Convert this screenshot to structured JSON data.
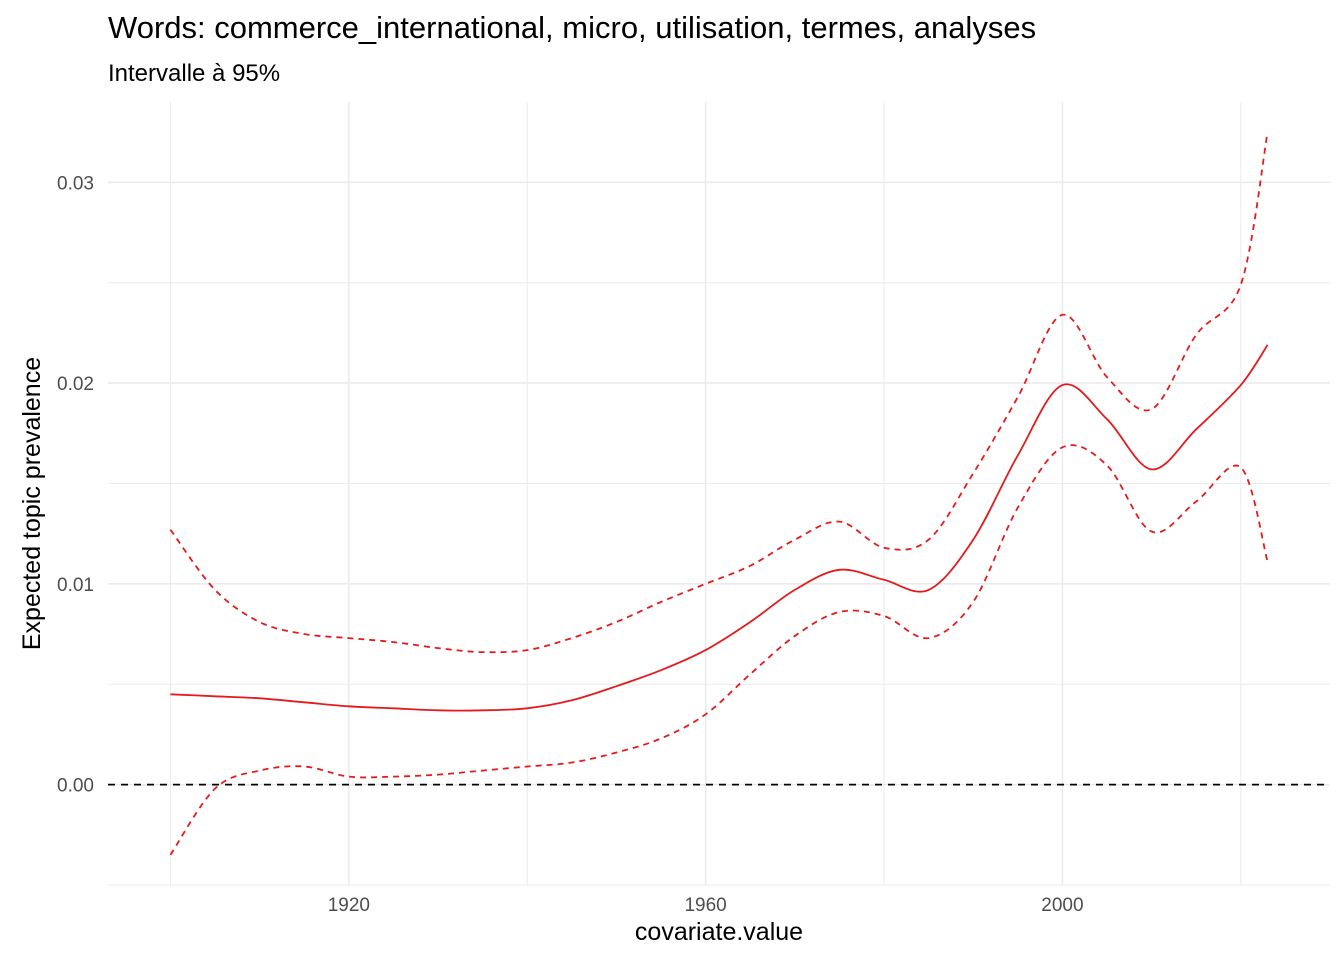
{
  "chart_data": {
    "type": "line",
    "title": "Words: commerce_international, micro, utilisation, termes, analyses",
    "subtitle": "Intervalle à 95%",
    "xlabel": "covariate.value",
    "ylabel": "Expected topic prevalence",
    "xlim": [
      1893,
      2030
    ],
    "ylim": [
      -0.005,
      0.034
    ],
    "x_ticks": [
      1920,
      1960,
      2000
    ],
    "x_tick_labels": [
      "1920",
      "1960",
      "2000"
    ],
    "y_ticks": [
      0.0,
      0.01,
      0.02,
      0.03
    ],
    "y_tick_labels": [
      "0.00",
      "0.01",
      "0.02",
      "0.03"
    ],
    "grid": true,
    "reference_line": {
      "y": 0,
      "style": "dashed",
      "color": "#000000"
    },
    "colors": {
      "series": "#e41a1c",
      "grid": "#ebebeb",
      "reference": "#000000"
    },
    "x": [
      1900,
      1905,
      1910,
      1915,
      1920,
      1925,
      1930,
      1935,
      1940,
      1945,
      1950,
      1955,
      1960,
      1965,
      1970,
      1975,
      1980,
      1985,
      1990,
      1995,
      2000,
      2005,
      2010,
      2015,
      2020,
      2023
    ],
    "series": [
      {
        "style": "solid",
        "values": [
          0.0045,
          0.0044,
          0.0043,
          0.0041,
          0.0039,
          0.0038,
          0.0037,
          0.0037,
          0.0038,
          0.0042,
          0.0049,
          0.0057,
          0.0067,
          0.0081,
          0.0097,
          0.0107,
          0.0102,
          0.0097,
          0.0122,
          0.0164,
          0.0199,
          0.0182,
          0.0157,
          0.0177,
          0.0199,
          0.0219
        ]
      },
      {
        "style": "dashed",
        "values": [
          0.0127,
          0.0097,
          0.0081,
          0.0075,
          0.0073,
          0.0071,
          0.0068,
          0.0066,
          0.0067,
          0.0073,
          0.0081,
          0.0091,
          0.01,
          0.0109,
          0.0122,
          0.0131,
          0.0118,
          0.0122,
          0.0155,
          0.0193,
          0.0234,
          0.0203,
          0.0187,
          0.0224,
          0.0249,
          0.0325
        ]
      },
      {
        "style": "dashed",
        "values": [
          -0.0035,
          -0.0002,
          0.0007,
          0.0009,
          0.0004,
          0.0004,
          0.0005,
          0.0007,
          0.0009,
          0.0011,
          0.0016,
          0.0023,
          0.0035,
          0.0055,
          0.0074,
          0.0086,
          0.0084,
          0.0073,
          0.0091,
          0.0138,
          0.0168,
          0.0159,
          0.0126,
          0.0141,
          0.0158,
          0.0111
        ]
      }
    ]
  }
}
